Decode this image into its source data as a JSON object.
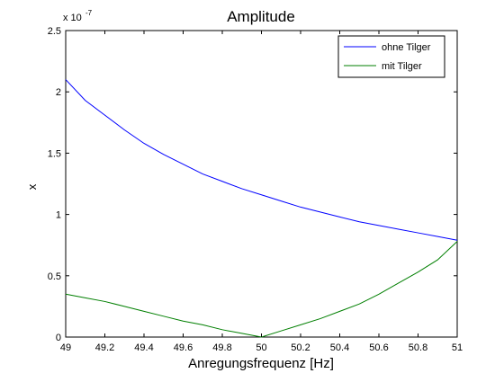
{
  "chart_data": {
    "type": "line",
    "title": "Amplitude",
    "xlabel": "Anregungsfrequenz [Hz]",
    "ylabel": "x",
    "xlim": [
      49,
      51
    ],
    "ylim": [
      0,
      2.5
    ],
    "y_exponent_label": "x 10",
    "y_exponent_power": "-7",
    "x_ticks": [
      "49",
      "49.2",
      "49.4",
      "49.6",
      "49.8",
      "50",
      "50.2",
      "50.4",
      "50.6",
      "50.8",
      "51"
    ],
    "y_ticks": [
      "0",
      "0.5",
      "1",
      "1.5",
      "2",
      "2.5"
    ],
    "grid": false,
    "legend_position": "top-right",
    "series": [
      {
        "name": "ohne Tilger",
        "color": "#0000ff",
        "x": [
          49.0,
          49.1,
          49.2,
          49.3,
          49.4,
          49.5,
          49.6,
          49.7,
          49.8,
          49.9,
          50.0,
          50.1,
          50.2,
          50.3,
          50.4,
          50.5,
          50.6,
          50.7,
          50.8,
          50.9,
          51.0
        ],
        "y": [
          2.1,
          1.93,
          1.81,
          1.69,
          1.58,
          1.49,
          1.41,
          1.33,
          1.27,
          1.21,
          1.16,
          1.11,
          1.06,
          1.02,
          0.98,
          0.94,
          0.91,
          0.88,
          0.85,
          0.82,
          0.79
        ]
      },
      {
        "name": "mit Tilger",
        "color": "#007f00",
        "x": [
          49.0,
          49.1,
          49.2,
          49.3,
          49.4,
          49.5,
          49.6,
          49.7,
          49.8,
          49.9,
          50.0,
          50.1,
          50.2,
          50.3,
          50.4,
          50.5,
          50.6,
          50.7,
          50.8,
          50.9,
          51.0
        ],
        "y": [
          0.35,
          0.32,
          0.29,
          0.25,
          0.21,
          0.17,
          0.13,
          0.1,
          0.06,
          0.03,
          0.0,
          0.05,
          0.1,
          0.15,
          0.21,
          0.27,
          0.35,
          0.44,
          0.53,
          0.63,
          0.78
        ]
      }
    ]
  }
}
